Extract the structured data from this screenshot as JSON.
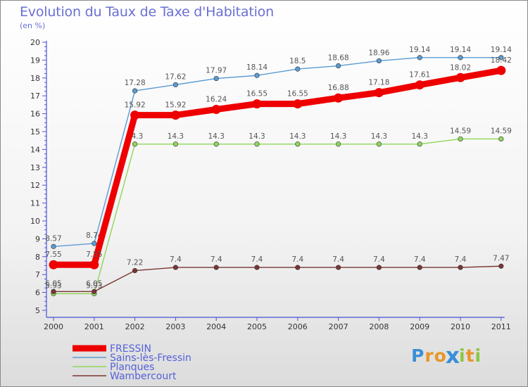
{
  "chart_data": {
    "type": "line",
    "title": "Evolution du Taux de Taxe d'Habitation",
    "unit_label": "(en %)",
    "x": [
      "2000",
      "2001",
      "2002",
      "2003",
      "2004",
      "2005",
      "2006",
      "2007",
      "2008",
      "2009",
      "2010",
      "2011"
    ],
    "y_ticks": [
      "5",
      "6",
      "7",
      "8",
      "9",
      "10",
      "11",
      "12",
      "13",
      "14",
      "15",
      "16",
      "17",
      "18",
      "19",
      "20"
    ],
    "ylim": [
      5,
      20
    ],
    "grid": false,
    "legend_position": "bottom-left",
    "series": [
      {
        "name": "Sains-lès-Fressin",
        "color": "#5a9bd4",
        "labels_above": true,
        "values": [
          8.57,
          8.74,
          17.28,
          17.62,
          17.97,
          18.14,
          18.5,
          18.68,
          18.96,
          19.14,
          19.14,
          19.14
        ],
        "labels": [
          "8.57",
          "8.74",
          "17.28",
          "17.62",
          "17.97",
          "18.14",
          "18.5",
          "18.68",
          "18.96",
          "19.14",
          "19.14",
          "19.14"
        ]
      },
      {
        "name": "Planques",
        "color": "#8fd65a",
        "labels_above": true,
        "values": [
          5.93,
          5.93,
          14.3,
          14.3,
          14.3,
          14.3,
          14.3,
          14.3,
          14.3,
          14.3,
          14.59,
          14.59
        ],
        "labels": [
          "5.93",
          "5.93",
          "14.3",
          "14.3",
          "14.3",
          "14.3",
          "14.3",
          "14.3",
          "14.3",
          "14.3",
          "14.59",
          "14.59"
        ]
      },
      {
        "name": "Wambercourt",
        "color": "#7a3535",
        "labels_above": true,
        "values": [
          6.05,
          6.05,
          7.22,
          7.4,
          7.4,
          7.4,
          7.4,
          7.4,
          7.4,
          7.4,
          7.4,
          7.47
        ],
        "labels": [
          "6.05",
          "6.05",
          "7.22",
          "7.4",
          "7.4",
          "7.4",
          "7.4",
          "7.4",
          "7.4",
          "7.4",
          "7.4",
          "7.47"
        ]
      },
      {
        "name": "FRESSIN",
        "color": "#ee0000",
        "thick": true,
        "labels_above": true,
        "values": [
          7.55,
          7.55,
          15.92,
          15.92,
          16.24,
          16.55,
          16.55,
          16.88,
          17.18,
          17.61,
          18.02,
          18.42
        ],
        "labels": [
          "7.55",
          "7.55",
          "15.92",
          "15.92",
          "16.24",
          "16.55",
          "16.55",
          "16.88",
          "17.18",
          "17.61",
          "18.02",
          "18.42"
        ]
      }
    ],
    "legend": [
      "FRESSIN",
      "Sains-lès-Fressin",
      "Planques",
      "Wambercourt"
    ]
  },
  "logo": {
    "letters": [
      "P",
      "r",
      "o",
      "x",
      "i",
      "t",
      "i"
    ],
    "colors": [
      "#3a8fd8",
      "#e8962a",
      "#e8962a",
      "#3a8fd8",
      "#8cc63f",
      "#e8962a",
      "#8cc63f"
    ]
  }
}
